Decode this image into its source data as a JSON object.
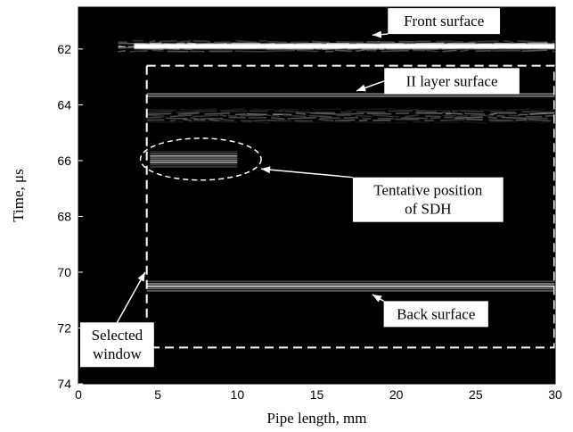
{
  "chart_data": {
    "type": "heatmap",
    "title": "",
    "xlabel": "Pipe length, mm",
    "ylabel": "Time, μs",
    "xlim": [
      0,
      30
    ],
    "ylim": [
      74,
      60.5
    ],
    "y_inverted": true,
    "x_ticks": [
      0,
      5,
      10,
      15,
      20,
      25,
      30
    ],
    "y_ticks": [
      62,
      64,
      66,
      68,
      70,
      72,
      74
    ],
    "colormap": "gray",
    "background_color": "#000000",
    "reflection_bands": [
      {
        "name": "front-surface",
        "x_start": 2.5,
        "x_end": 30,
        "t_center": 61.9,
        "t_width": 0.5,
        "brightness": 1.0
      },
      {
        "name": "ii-layer-surface",
        "x_start": 4.3,
        "x_end": 30,
        "t_center": 63.65,
        "t_width": 0.25,
        "brightness": 0.9
      },
      {
        "name": "ii-layer-texture",
        "x_start": 4.3,
        "x_end": 30,
        "t_center": 64.4,
        "t_width": 0.6,
        "brightness": 0.55
      },
      {
        "name": "sdh",
        "x_start": 4.5,
        "x_end": 10.0,
        "t_center": 65.95,
        "t_width": 0.7,
        "brightness": 0.75
      },
      {
        "name": "back-surface",
        "x_start": 4.3,
        "x_end": 30,
        "t_center": 70.5,
        "t_width": 0.5,
        "brightness": 0.95
      }
    ],
    "selected_window": {
      "x_start": 4.3,
      "x_end": 30,
      "t_start": 62.6,
      "t_end": 72.7
    },
    "sdh_ellipse": {
      "x_center": 7.7,
      "t_center": 65.95,
      "x_radius": 3.8,
      "t_radius": 0.75
    },
    "annotations": [
      {
        "text": [
          "Front surface"
        ],
        "x": 23,
        "t": 61.0,
        "target_x": 18.5,
        "target_t": 61.5
      },
      {
        "text": [
          "II layer surface"
        ],
        "x": 23.5,
        "t": 63.15,
        "target_x": 17.5,
        "target_t": 63.5
      },
      {
        "text": [
          "Tentative position",
          "of SDH"
        ],
        "x": 22,
        "t": 67.4,
        "target_x": 11.5,
        "target_t": 66.3
      },
      {
        "text": [
          "Back surface"
        ],
        "x": 22.5,
        "t": 71.5,
        "target_x": 18.5,
        "target_t": 70.8
      },
      {
        "text": [
          "Selected",
          "window"
        ],
        "x": 2.2,
        "t": 72.6,
        "target_x": 4.2,
        "target_t": 70.0
      }
    ]
  }
}
